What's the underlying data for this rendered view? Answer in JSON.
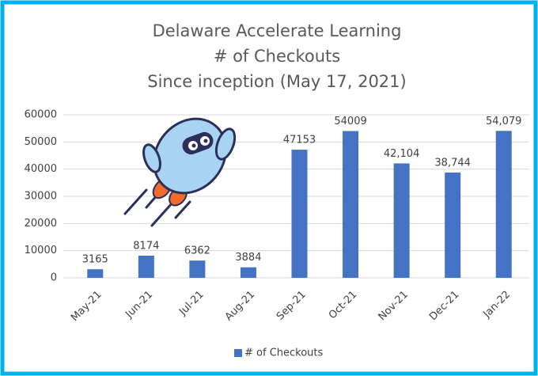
{
  "chart_data": {
    "type": "bar",
    "title": [
      "Delaware Accelerate Learning",
      "# of Checkouts",
      "Since inception (May 17, 2021)"
    ],
    "categories": [
      "May-21",
      "Jun-21",
      "Jul-21",
      "Aug-21",
      "Sep-21",
      "Oct-21",
      "Nov-21",
      "Dec-21",
      "Jan-22"
    ],
    "series": [
      {
        "name": "# of Checkouts",
        "color": "#4472c4",
        "values": [
          3165,
          8174,
          6362,
          3884,
          47153,
          54009,
          42104,
          38744,
          54079
        ],
        "value_labels": [
          "3165",
          "8174",
          "6362",
          "3884",
          "47153",
          "54009",
          "42,104",
          "38,744",
          "54,079"
        ]
      }
    ],
    "ylim": [
      0,
      60000
    ],
    "yticks": [
      0,
      10000,
      20000,
      30000,
      40000,
      50000,
      60000
    ],
    "grid": true,
    "legend": "bottom"
  }
}
